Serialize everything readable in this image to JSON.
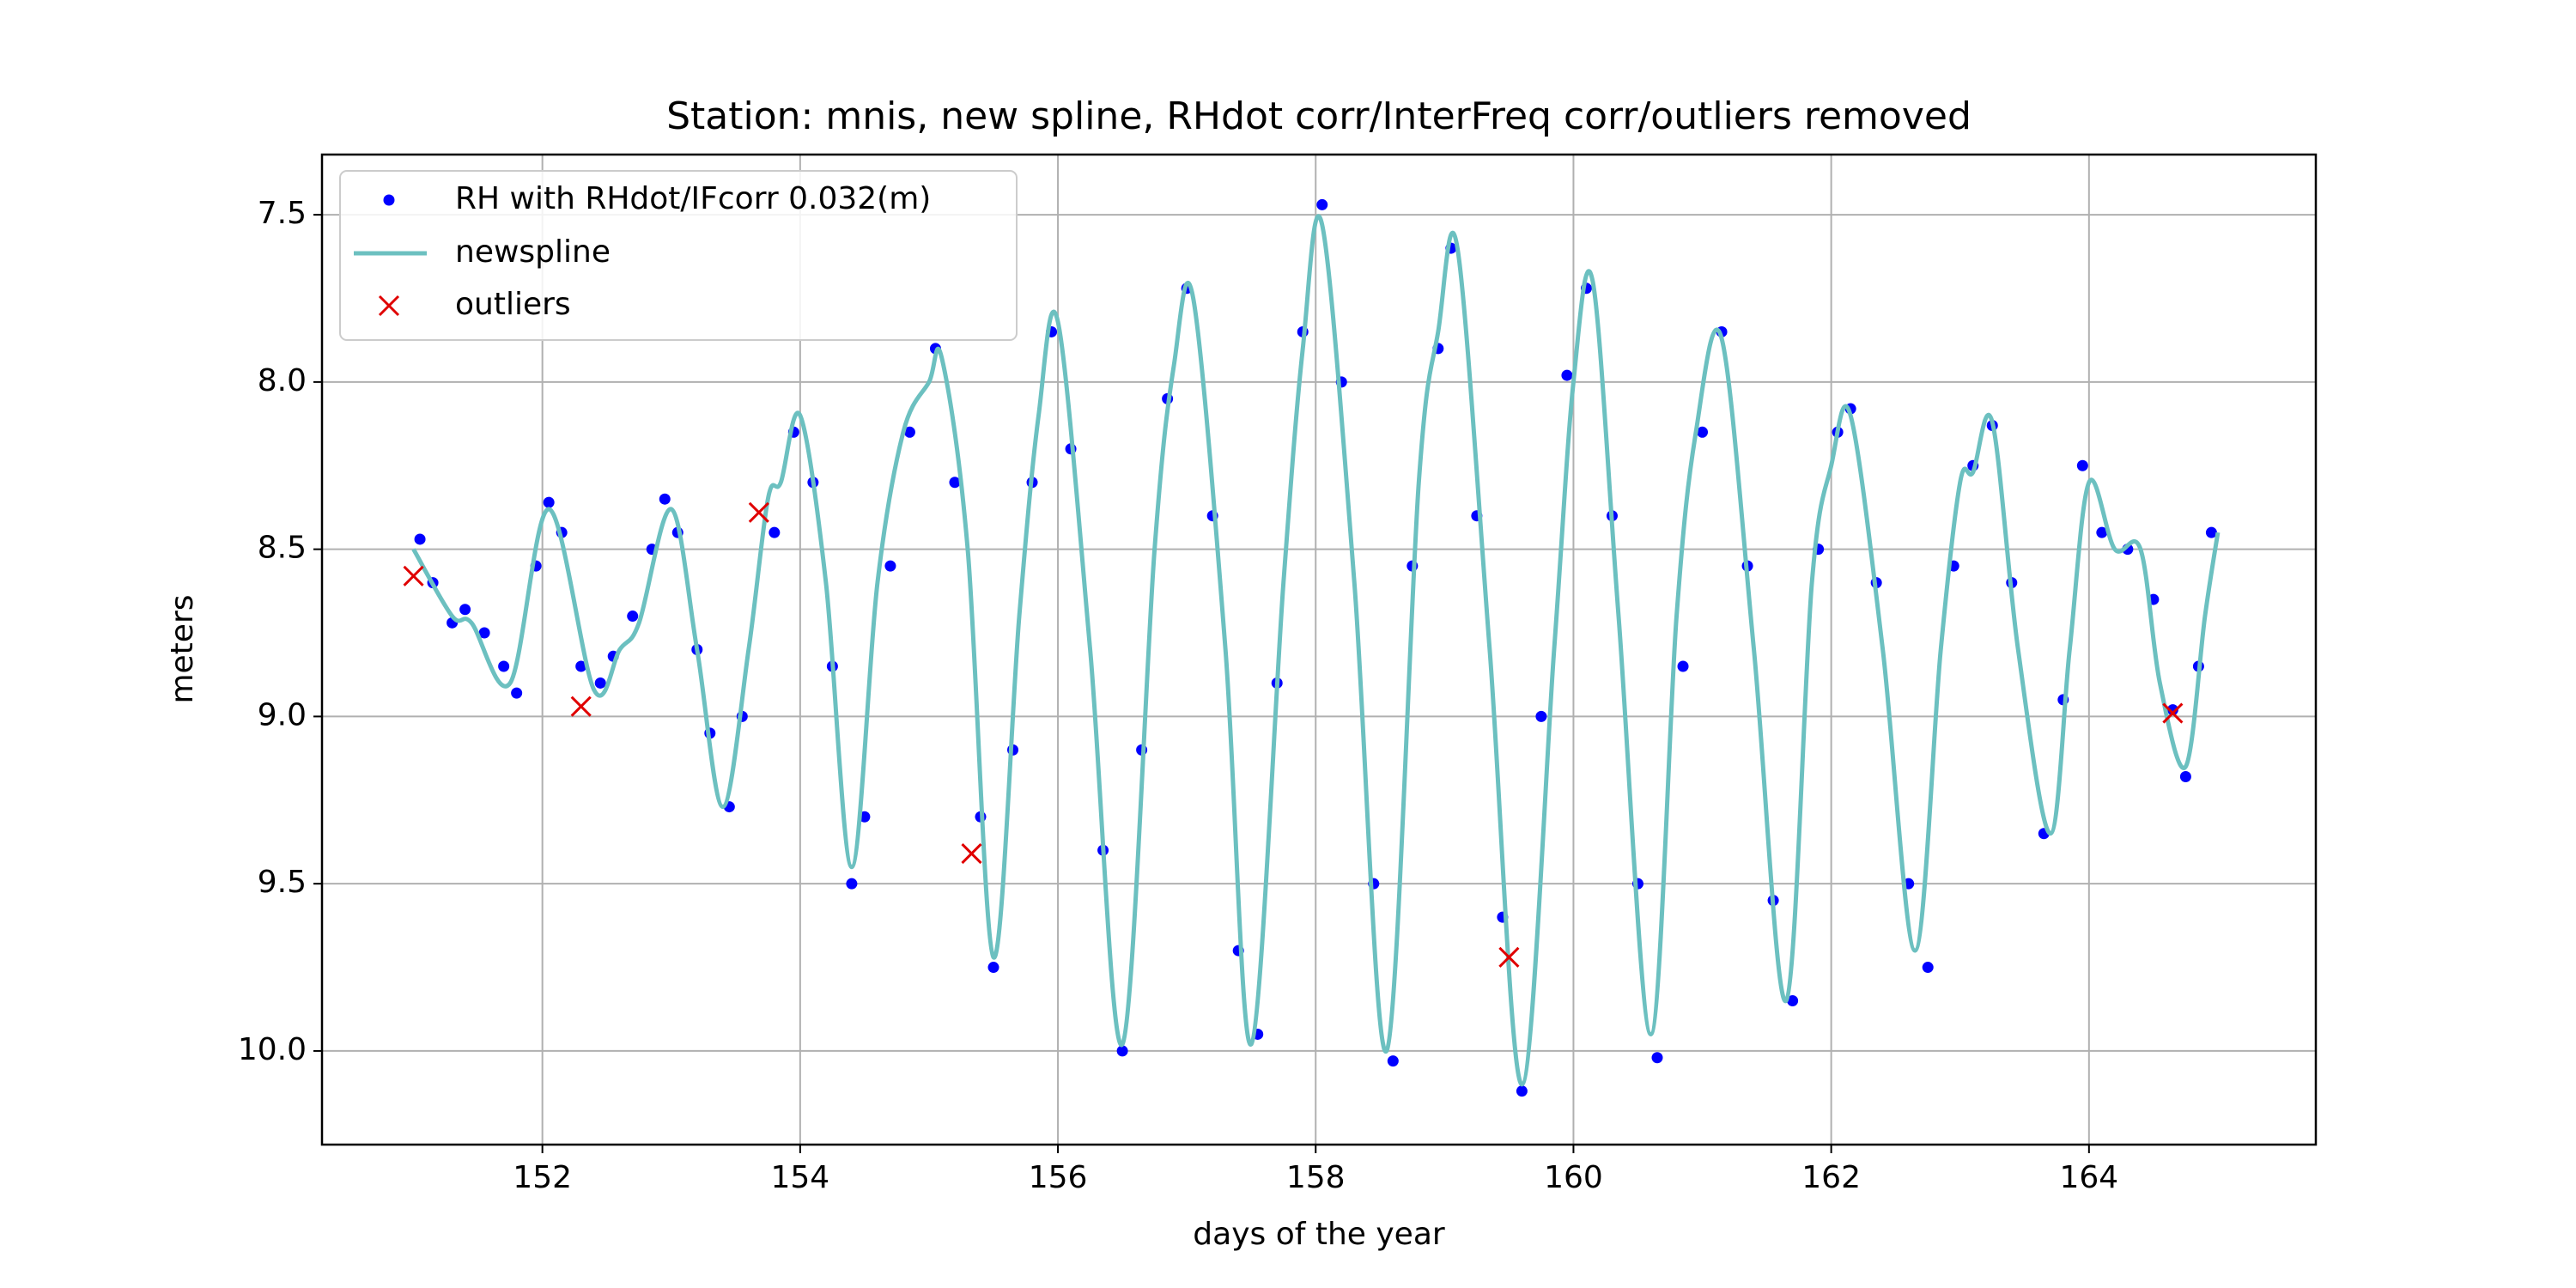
{
  "chart_data": {
    "type": "mixed",
    "title": "Station: mnis, new spline, RHdot corr/InterFreq corr/outliers removed",
    "x_label": "days of the year",
    "y_label": "meters",
    "xlim": [
      150.29,
      165.76
    ],
    "ylim": [
      7.32,
      10.28
    ],
    "y_inverted": true,
    "xticks": [
      152,
      154,
      156,
      158,
      160,
      162,
      164
    ],
    "yticks": [
      7.5,
      {
        "value": 8.0,
        "label": "8.0"
      },
      8.5,
      {
        "value": 9.0,
        "label": "9.0"
      },
      9.5,
      {
        "value": 10.0,
        "label": "10.0"
      }
    ],
    "grid": true,
    "legend": "upper left",
    "series": [
      {
        "name": "RH with RHdot/IFcorr 0.032(m)",
        "style": "dots",
        "color": "#0000ff",
        "x": [
          151.05,
          151.15,
          151.3,
          151.4,
          151.55,
          151.7,
          151.8,
          151.95,
          152.05,
          152.15,
          152.3,
          152.45,
          152.55,
          152.7,
          152.85,
          152.95,
          153.05,
          153.2,
          153.3,
          153.45,
          153.55,
          153.8,
          153.95,
          154.1,
          154.25,
          154.4,
          154.5,
          154.7,
          154.85,
          155.05,
          155.2,
          155.4,
          155.5,
          155.65,
          155.8,
          155.95,
          156.1,
          156.35,
          156.5,
          156.65,
          156.85,
          157.0,
          157.2,
          157.4,
          157.55,
          157.7,
          157.9,
          158.05,
          158.2,
          158.45,
          158.6,
          158.75,
          158.95,
          159.05,
          159.25,
          159.45,
          159.6,
          159.75,
          159.95,
          160.1,
          160.3,
          160.5,
          160.65,
          160.85,
          161.0,
          161.15,
          161.35,
          161.55,
          161.7,
          161.9,
          162.05,
          162.15,
          162.35,
          162.6,
          162.75,
          162.95,
          163.1,
          163.25,
          163.4,
          163.65,
          163.8,
          163.95,
          164.1,
          164.3,
          164.5,
          164.65,
          164.75,
          164.85,
          164.95
        ],
        "values": [
          8.47,
          8.6,
          8.72,
          8.68,
          8.75,
          8.85,
          8.93,
          8.55,
          8.36,
          8.45,
          8.85,
          8.9,
          8.82,
          8.7,
          8.5,
          8.35,
          8.45,
          8.8,
          9.05,
          9.27,
          9.0,
          8.45,
          8.15,
          8.3,
          8.85,
          9.5,
          9.3,
          8.55,
          8.15,
          7.9,
          8.3,
          9.3,
          9.75,
          9.1,
          8.3,
          7.85,
          8.2,
          9.4,
          10.0,
          9.1,
          8.05,
          7.72,
          8.4,
          9.7,
          9.95,
          8.9,
          7.85,
          7.47,
          8.0,
          9.5,
          10.03,
          8.55,
          7.9,
          7.6,
          8.4,
          9.6,
          10.12,
          9.0,
          7.98,
          7.72,
          8.4,
          9.5,
          10.02,
          8.85,
          8.15,
          7.85,
          8.55,
          9.55,
          9.85,
          8.5,
          8.15,
          8.08,
          8.6,
          9.5,
          9.75,
          8.55,
          8.25,
          8.13,
          8.6,
          9.35,
          8.95,
          8.25,
          8.45,
          8.5,
          8.65,
          8.98,
          9.18,
          8.85,
          8.45
        ]
      },
      {
        "name": "newspline",
        "style": "line",
        "color": "#6cc0c0",
        "x": [
          151.0,
          151.3,
          151.45,
          151.75,
          152.05,
          152.4,
          152.6,
          152.75,
          153.0,
          153.2,
          153.4,
          153.6,
          153.75,
          153.85,
          154.0,
          154.2,
          154.4,
          154.6,
          154.8,
          155.0,
          155.1,
          155.3,
          155.5,
          155.7,
          155.85,
          156.0,
          156.25,
          156.5,
          156.75,
          156.9,
          157.05,
          157.3,
          157.5,
          157.75,
          157.9,
          158.05,
          158.3,
          158.55,
          158.8,
          158.95,
          159.1,
          159.35,
          159.6,
          159.85,
          160.0,
          160.15,
          160.35,
          160.6,
          160.8,
          160.95,
          161.15,
          161.4,
          161.65,
          161.85,
          162.0,
          162.15,
          162.4,
          162.65,
          162.85,
          163.0,
          163.1,
          163.25,
          163.45,
          163.7,
          163.85,
          164.0,
          164.2,
          164.4,
          164.55,
          164.75,
          164.9,
          165.0
        ],
        "values": [
          8.5,
          8.7,
          8.72,
          8.9,
          8.38,
          8.92,
          8.8,
          8.72,
          8.38,
          8.8,
          9.27,
          8.8,
          8.35,
          8.3,
          8.1,
          8.6,
          9.45,
          8.6,
          8.15,
          8.0,
          7.93,
          8.5,
          9.72,
          8.7,
          8.1,
          7.82,
          8.8,
          9.98,
          8.5,
          7.95,
          7.75,
          8.8,
          9.98,
          8.6,
          7.9,
          7.53,
          8.6,
          10.0,
          8.3,
          7.85,
          7.6,
          8.8,
          10.1,
          8.8,
          8.0,
          7.7,
          8.7,
          9.95,
          8.7,
          8.15,
          7.87,
          8.8,
          9.85,
          8.6,
          8.25,
          8.1,
          8.8,
          9.7,
          8.8,
          8.3,
          8.27,
          8.12,
          8.8,
          9.35,
          8.8,
          8.3,
          8.5,
          8.5,
          8.9,
          9.15,
          8.7,
          8.45
        ]
      },
      {
        "name": "outliers",
        "style": "cross",
        "color": "#e00000",
        "x": [
          151.0,
          152.3,
          153.68,
          155.33,
          159.5,
          164.65
        ],
        "values": [
          8.58,
          8.97,
          8.39,
          9.41,
          9.72,
          8.99
        ]
      }
    ]
  }
}
